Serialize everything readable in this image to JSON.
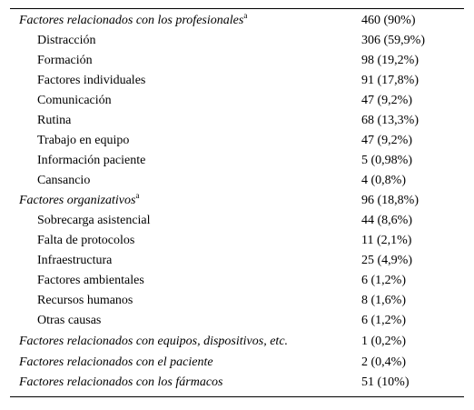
{
  "table": {
    "rows": [
      {
        "label": "Factores relacionados con los profesionales",
        "sup": "a",
        "value": "460 (90%)",
        "kind": "cat"
      },
      {
        "label": "Distracción",
        "value": "306 (59,9%)",
        "kind": "sub"
      },
      {
        "label": "Formación",
        "value": "98 (19,2%)",
        "kind": "sub"
      },
      {
        "label": "Factores individuales",
        "value": "91 (17,8%)",
        "kind": "sub"
      },
      {
        "label": "Comunicación",
        "value": "47 (9,2%)",
        "kind": "sub"
      },
      {
        "label": "Rutina",
        "value": "68 (13,3%)",
        "kind": "sub"
      },
      {
        "label": "Trabajo en equipo",
        "value": "47 (9,2%)",
        "kind": "sub"
      },
      {
        "label": "Información paciente",
        "value": "5 (0,98%)",
        "kind": "sub"
      },
      {
        "label": "Cansancio",
        "value": "4 (0,8%)",
        "kind": "sub"
      },
      {
        "label": "Factores organizativos",
        "sup": "a",
        "value": "96 (18,8%)",
        "kind": "cat"
      },
      {
        "label": "Sobrecarga asistencial",
        "value": "44 (8,6%)",
        "kind": "sub"
      },
      {
        "label": "Falta de protocolos",
        "value": "11 (2,1%)",
        "kind": "sub"
      },
      {
        "label": "Infraestructura",
        "value": "25 (4,9%)",
        "kind": "sub"
      },
      {
        "label": "Factores ambientales",
        "value": "6 (1,2%)",
        "kind": "sub"
      },
      {
        "label": "Recursos humanos",
        "value": "8 (1,6%)",
        "kind": "sub"
      },
      {
        "label": "Otras causas",
        "value": "6 (1,2%)",
        "kind": "sub"
      },
      {
        "label": "Factores relacionados con equipos, dispositivos, etc.",
        "value": "1 (0,2%)",
        "kind": "cat"
      },
      {
        "label": "Factores relacionados con el paciente",
        "value": "2 (0,4%)",
        "kind": "cat"
      },
      {
        "label": "Factores relacionados con los fármacos",
        "value": "51 (10%)",
        "kind": "cat"
      }
    ]
  }
}
